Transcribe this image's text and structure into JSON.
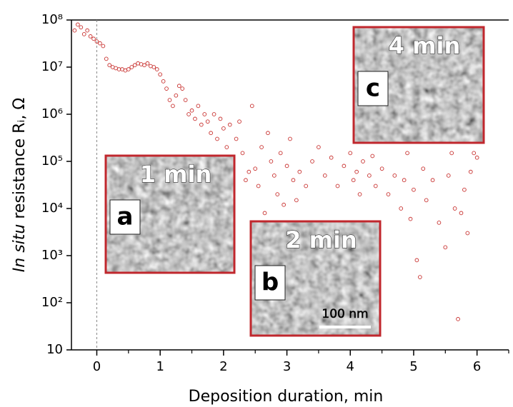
{
  "chart_data": {
    "type": "scatter",
    "xlabel": "Deposition duration, min",
    "ylabel": [
      "In situ",
      " resistance Rᵢ, Ω"
    ],
    "xlim": [
      -0.4,
      6.5
    ],
    "xticks": [
      0,
      1,
      2,
      3,
      4,
      5,
      6
    ],
    "xticks_minor": [
      0.5,
      1.5,
      2.5,
      3.5,
      4.5,
      5.5,
      6.5
    ],
    "ylim": [
      10,
      100000000
    ],
    "yscale": "log",
    "yticks": [
      {
        "value": 10,
        "label": "10"
      },
      {
        "value": 100,
        "label": "10²"
      },
      {
        "value": 1000,
        "label": "10³"
      },
      {
        "value": 10000,
        "label": "10⁴"
      },
      {
        "value": 100000,
        "label": "10⁵"
      },
      {
        "value": 1000000,
        "label": "10⁶"
      },
      {
        "value": 10000000,
        "label": "10⁷"
      },
      {
        "value": 100000000,
        "label": "10⁸"
      }
    ],
    "zero_line": 0,
    "color": "#c8302e",
    "series": [
      {
        "x": [
          -0.35,
          -0.3,
          -0.25,
          -0.2,
          -0.15,
          -0.1,
          -0.05,
          0,
          0.05,
          0.1,
          0.15,
          0.2,
          0.25,
          0.3,
          0.35,
          0.4,
          0.45,
          0.5,
          0.55,
          0.6,
          0.65,
          0.7,
          0.75,
          0.8,
          0.85,
          0.9,
          0.95,
          1.0,
          1.05,
          1.1,
          1.15,
          1.2,
          1.25,
          1.3,
          1.35,
          1.4,
          1.45,
          1.5,
          1.55,
          1.6,
          1.65,
          1.7,
          1.75,
          1.8,
          1.85,
          1.9,
          1.95,
          2.0,
          2.05,
          2.1,
          2.15,
          2.2,
          2.25,
          2.3,
          2.35,
          2.4,
          2.45,
          2.5,
          2.55,
          2.6,
          2.65,
          2.7,
          2.75,
          2.8,
          2.85,
          2.9,
          2.95,
          3.0,
          3.05,
          3.1,
          3.15,
          3.2,
          3.3,
          3.4,
          3.5,
          3.6,
          3.7,
          3.8,
          3.9,
          4.0,
          4.05,
          4.1,
          4.15,
          4.2,
          4.3,
          4.35,
          4.4,
          4.5,
          4.6,
          4.7,
          4.8,
          4.85,
          4.9,
          4.95,
          5.0,
          5.05,
          5.1,
          5.15,
          5.2,
          5.3,
          5.4,
          5.5,
          5.55,
          5.6,
          5.65,
          5.7,
          5.75,
          5.8,
          5.85,
          5.9,
          5.95,
          6.0
        ],
        "values": [
          60000000.0,
          80000000.0,
          70000000.0,
          50000000.0,
          60000000.0,
          45000000.0,
          40000000.0,
          35000000.0,
          32000000.0,
          28000000.0,
          15000000.0,
          11000000.0,
          10000000.0,
          9500000.0,
          9000000.0,
          9000000.0,
          8500000.0,
          9000000.0,
          10000000.0,
          11000000.0,
          12000000.0,
          11500000.0,
          11000000.0,
          12000000.0,
          10500000.0,
          10000000.0,
          9000000.0,
          7000000.0,
          5000000.0,
          3500000.0,
          2000000.0,
          1500000.0,
          2500000.0,
          4000000.0,
          3500000.0,
          2000000.0,
          1000000.0,
          1200000.0,
          800000.0,
          1500000.0,
          600000.0,
          1000000.0,
          700000.0,
          400000.0,
          1000000.0,
          300000.0,
          800000.0,
          500000.0,
          200000.0,
          600000.0,
          120000.0,
          300000.0,
          700000.0,
          150000.0,
          40000.0,
          60000.0,
          1500000.0,
          70000.0,
          30000.0,
          200000.0,
          8000.0,
          400000.0,
          100000.0,
          50000.0,
          20000.0,
          150000.0,
          12000.0,
          80000.0,
          300000.0,
          40000.0,
          15000.0,
          60000.0,
          30000.0,
          100000.0,
          200000.0,
          50000.0,
          120000.0,
          30000.0,
          80000.0,
          150000.0,
          40000.0,
          60000.0,
          20000.0,
          100000.0,
          50000.0,
          130000.0,
          30000.0,
          70000.0,
          20000.0,
          50000.0,
          10000.0,
          40000.0,
          150000.0,
          6000.0,
          25000.0,
          800.0,
          350.0,
          70000.0,
          15000.0,
          40000.0,
          5000.0,
          1500.0,
          50000.0,
          150000.0,
          10000.0,
          45,
          8000.0,
          25000.0,
          3000.0,
          60000.0,
          150000.0,
          120000.0
        ]
      }
    ],
    "insets": [
      {
        "letter": "a",
        "time": "1 min"
      },
      {
        "letter": "b",
        "time": "2 min"
      },
      {
        "letter": "c",
        "time": "4 min"
      }
    ],
    "scale_bar": "100 nm"
  }
}
